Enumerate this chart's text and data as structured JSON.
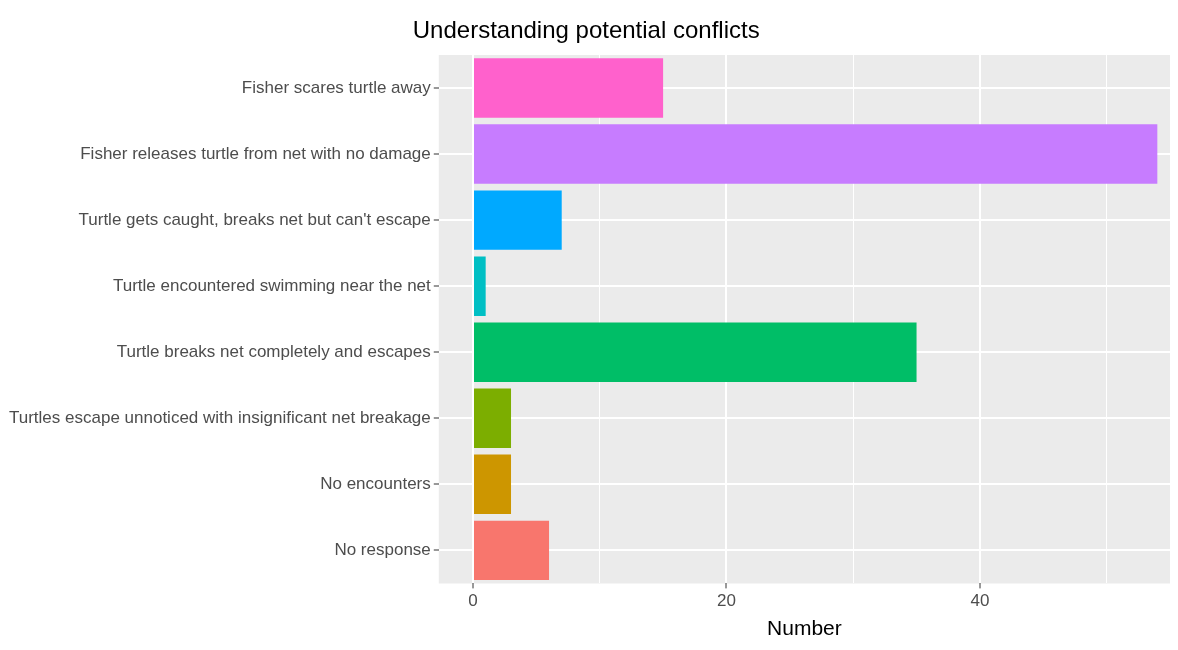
{
  "chart_data": {
    "type": "bar",
    "orientation": "horizontal",
    "title": "Understanding potential conflicts",
    "xlabel": "Number",
    "categories": [
      "Fisher scares turtle away",
      "Fisher releases turtle from net with no damage",
      "Turtle gets caught, breaks net but can't escape",
      "Turtle encountered swimming near the net",
      "Turtle breaks net completely and escapes",
      "Turtles escape unnoticed with insignificant net breakage",
      "No encounters",
      "No response"
    ],
    "values": [
      15,
      54,
      7,
      1,
      35,
      3,
      3,
      6
    ],
    "colors": [
      "#ff61cc",
      "#c77cff",
      "#00a9ff",
      "#00bfc4",
      "#00be67",
      "#7cae00",
      "#cd9600",
      "#f8766d"
    ],
    "xlim": [
      -2.7,
      55
    ],
    "xticks": [
      0,
      {
        "value": 10,
        "label": null
      },
      20,
      {
        "value": 30,
        "label": null
      },
      40,
      {
        "value": 50,
        "label": null
      }
    ],
    "grid": true,
    "legend": false
  }
}
